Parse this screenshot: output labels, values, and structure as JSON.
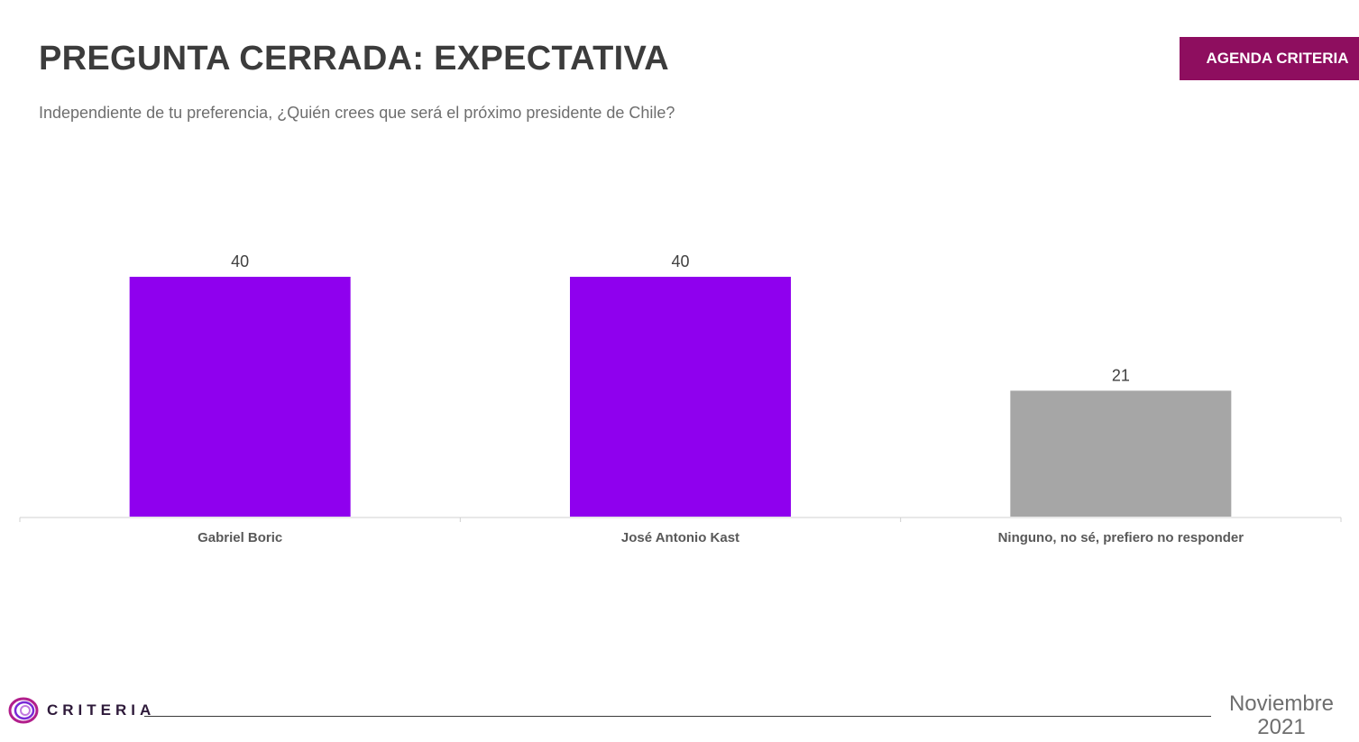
{
  "header": {
    "title": "PREGUNTA CERRADA: EXPECTATIVA",
    "subtitle": "Independiente de tu preferencia, ¿Quién crees que será el próximo presidente de Chile?",
    "badge": "AGENDA CRITERIA"
  },
  "chart_data": {
    "type": "bar",
    "categories": [
      "Gabriel Boric",
      "José Antonio Kast",
      "Ninguno, no sé, prefiero no responder"
    ],
    "values": [
      40,
      40,
      21
    ],
    "data_labels": [
      "40",
      "40",
      "21"
    ],
    "colors": [
      "#8f00ee",
      "#8f00ee",
      "#a6a6a6"
    ],
    "ylim": [
      0,
      40
    ],
    "title": "",
    "xlabel": "",
    "ylabel": ""
  },
  "footer": {
    "brand": "CRITERIA",
    "date_month": "Noviembre",
    "date_year": "2021",
    "brand_color": "#8e0e5f"
  }
}
